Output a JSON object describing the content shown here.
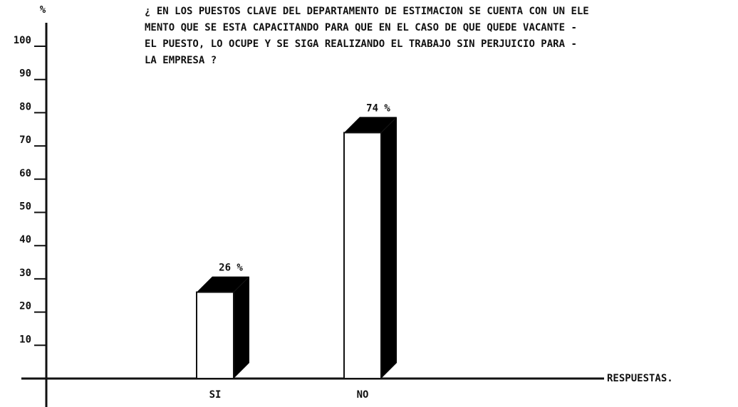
{
  "chart_data": {
    "type": "bar",
    "title": [
      "¿ EN LOS PUESTOS CLAVE DEL DEPARTAMENTO DE ESTIMACION SE CUENTA CON UN ELE",
      "MENTO QUE SE ESTA CAPACITANDO PARA QUE EN EL CASO DE QUE QUEDE VACANTE -",
      "EL PUESTO, LO OCUPE Y SE SIGA REALIZANDO EL TRABAJO SIN PERJUICIO PARA -",
      "LA EMPRESA ?"
    ],
    "y_label": "%",
    "x_label": "RESPUESTAS.",
    "categories": [
      "SI",
      "NO"
    ],
    "values": [
      26,
      74
    ],
    "value_labels": [
      "26 %",
      "74 %"
    ],
    "color": "#ffffff",
    "side_color": "#000000",
    "ylim": [
      0,
      100
    ],
    "yticks": [
      10,
      20,
      30,
      40,
      50,
      60,
      70,
      80,
      90,
      100
    ]
  }
}
